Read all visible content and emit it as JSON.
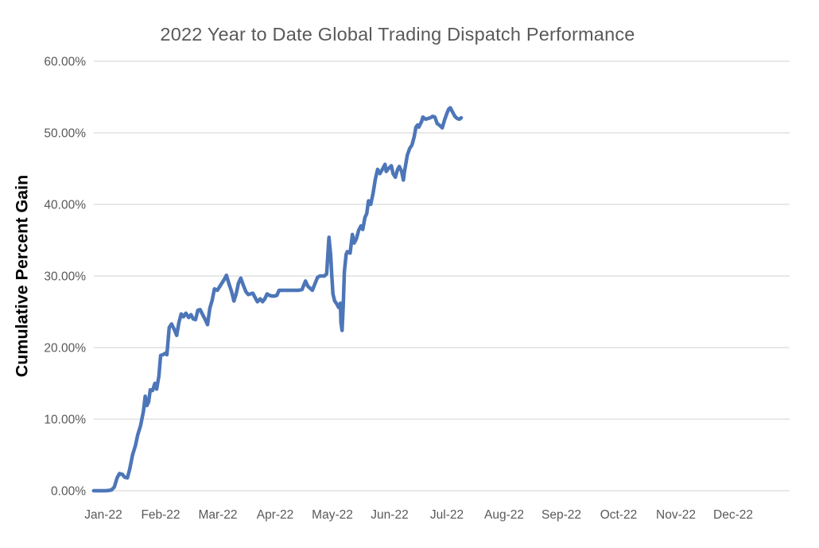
{
  "chart_data": {
    "type": "line",
    "title": "2022 Year to Date Global Trading Dispatch Performance",
    "ylabel": "Cumulative Percent Gain",
    "xlabel": "",
    "legend": "none",
    "grid": "horizontal",
    "ylim": [
      0,
      60
    ],
    "xlim_months": [
      -0.17,
      11.99
    ],
    "colors": {
      "line": "#4d76b8",
      "gridline": "#d9d9d9",
      "tick_label": "#595959",
      "title": "#595959",
      "y_axis_title": "#000000",
      "background": "#ffffff"
    },
    "y_ticks": [
      {
        "value": 0,
        "label": "0.00%"
      },
      {
        "value": 10,
        "label": "10.00%"
      },
      {
        "value": 20,
        "label": "20.00%"
      },
      {
        "value": 30,
        "label": "30.00%"
      },
      {
        "value": 40,
        "label": "40.00%"
      },
      {
        "value": 50,
        "label": "50.00%"
      },
      {
        "value": 60,
        "label": "60.00%"
      }
    ],
    "x_categories": [
      "Jan-22",
      "Feb-22",
      "Mar-22",
      "Apr-22",
      "May-22",
      "Jun-22",
      "Jul-22",
      "Aug-22",
      "Sep-22",
      "Oct-22",
      "Nov-22",
      "Dec-22"
    ],
    "series": [
      {
        "name": "Cumulative Percent Gain",
        "x_unit": "months-since-Jan-22-tick",
        "y_unit": "percent",
        "points": [
          [
            -0.17,
            0.0
          ],
          [
            0.05,
            0.0
          ],
          [
            0.14,
            0.1
          ],
          [
            0.19,
            0.5
          ],
          [
            0.24,
            1.8
          ],
          [
            0.28,
            2.4
          ],
          [
            0.33,
            2.3
          ],
          [
            0.37,
            1.9
          ],
          [
            0.42,
            1.8
          ],
          [
            0.46,
            3.0
          ],
          [
            0.51,
            5.0
          ],
          [
            0.56,
            6.3
          ],
          [
            0.6,
            7.8
          ],
          [
            0.65,
            9.1
          ],
          [
            0.7,
            11.1
          ],
          [
            0.73,
            13.2
          ],
          [
            0.76,
            11.9
          ],
          [
            0.79,
            12.4
          ],
          [
            0.82,
            14.1
          ],
          [
            0.86,
            14.0
          ],
          [
            0.9,
            15.0
          ],
          [
            0.93,
            14.2
          ],
          [
            0.97,
            16.0
          ],
          [
            1.0,
            18.9
          ],
          [
            1.04,
            19.0
          ],
          [
            1.08,
            19.2
          ],
          [
            1.11,
            19.0
          ],
          [
            1.15,
            22.8
          ],
          [
            1.19,
            23.3
          ],
          [
            1.24,
            22.5
          ],
          [
            1.28,
            21.7
          ],
          [
            1.32,
            23.5
          ],
          [
            1.36,
            24.7
          ],
          [
            1.4,
            24.3
          ],
          [
            1.44,
            24.8
          ],
          [
            1.49,
            24.2
          ],
          [
            1.53,
            24.6
          ],
          [
            1.57,
            24.0
          ],
          [
            1.61,
            23.9
          ],
          [
            1.65,
            25.2
          ],
          [
            1.69,
            25.3
          ],
          [
            1.74,
            24.5
          ],
          [
            1.78,
            23.9
          ],
          [
            1.82,
            23.2
          ],
          [
            1.86,
            25.5
          ],
          [
            1.9,
            26.6
          ],
          [
            1.94,
            28.2
          ],
          [
            1.99,
            28.0
          ],
          [
            2.03,
            28.5
          ],
          [
            2.07,
            29.0
          ],
          [
            2.11,
            29.5
          ],
          [
            2.15,
            30.1
          ],
          [
            2.19,
            29.0
          ],
          [
            2.24,
            27.8
          ],
          [
            2.28,
            26.5
          ],
          [
            2.32,
            27.5
          ],
          [
            2.36,
            29.0
          ],
          [
            2.4,
            29.7
          ],
          [
            2.44,
            28.8
          ],
          [
            2.49,
            27.8
          ],
          [
            2.53,
            27.4
          ],
          [
            2.57,
            27.5
          ],
          [
            2.61,
            27.6
          ],
          [
            2.65,
            27.0
          ],
          [
            2.69,
            26.4
          ],
          [
            2.74,
            26.8
          ],
          [
            2.78,
            26.4
          ],
          [
            2.82,
            26.8
          ],
          [
            2.86,
            27.5
          ],
          [
            2.9,
            27.3
          ],
          [
            2.94,
            27.2
          ],
          [
            2.99,
            27.2
          ],
          [
            3.03,
            27.3
          ],
          [
            3.07,
            28.0
          ],
          [
            3.15,
            28.0
          ],
          [
            3.24,
            28.0
          ],
          [
            3.32,
            28.0
          ],
          [
            3.4,
            28.0
          ],
          [
            3.47,
            28.1
          ],
          [
            3.53,
            29.3
          ],
          [
            3.57,
            28.6
          ],
          [
            3.61,
            28.3
          ],
          [
            3.65,
            28.0
          ],
          [
            3.69,
            28.8
          ],
          [
            3.74,
            29.8
          ],
          [
            3.78,
            30.0
          ],
          [
            3.82,
            30.0
          ],
          [
            3.86,
            30.0
          ],
          [
            3.9,
            30.3
          ],
          [
            3.94,
            35.4
          ],
          [
            3.97,
            33.0
          ],
          [
            3.99,
            30.0
          ],
          [
            4.01,
            27.5
          ],
          [
            4.04,
            26.5
          ],
          [
            4.07,
            26.2
          ],
          [
            4.11,
            25.6
          ],
          [
            4.14,
            26.2
          ],
          [
            4.15,
            23.5
          ],
          [
            4.17,
            22.4
          ],
          [
            4.19,
            26.0
          ],
          [
            4.21,
            30.6
          ],
          [
            4.24,
            33.0
          ],
          [
            4.26,
            33.4
          ],
          [
            4.31,
            33.2
          ],
          [
            4.35,
            35.8
          ],
          [
            4.38,
            34.6
          ],
          [
            4.42,
            35.2
          ],
          [
            4.46,
            36.4
          ],
          [
            4.5,
            37.0
          ],
          [
            4.53,
            36.5
          ],
          [
            4.57,
            38.2
          ],
          [
            4.6,
            38.7
          ],
          [
            4.63,
            40.5
          ],
          [
            4.67,
            40.0
          ],
          [
            4.71,
            41.5
          ],
          [
            4.75,
            43.5
          ],
          [
            4.79,
            44.9
          ],
          [
            4.83,
            44.3
          ],
          [
            4.88,
            45.0
          ],
          [
            4.92,
            45.6
          ],
          [
            4.94,
            44.6
          ],
          [
            4.99,
            45.1
          ],
          [
            5.03,
            45.4
          ],
          [
            5.06,
            44.3
          ],
          [
            5.1,
            43.8
          ],
          [
            5.14,
            44.9
          ],
          [
            5.17,
            45.3
          ],
          [
            5.21,
            44.6
          ],
          [
            5.24,
            43.4
          ],
          [
            5.26,
            44.6
          ],
          [
            5.31,
            46.9
          ],
          [
            5.35,
            47.8
          ],
          [
            5.39,
            48.3
          ],
          [
            5.43,
            49.5
          ],
          [
            5.46,
            50.8
          ],
          [
            5.49,
            51.1
          ],
          [
            5.51,
            50.8
          ],
          [
            5.56,
            51.6
          ],
          [
            5.58,
            52.2
          ],
          [
            5.63,
            51.9
          ],
          [
            5.67,
            52.0
          ],
          [
            5.71,
            52.1
          ],
          [
            5.75,
            52.3
          ],
          [
            5.79,
            52.2
          ],
          [
            5.83,
            51.3
          ],
          [
            5.88,
            51.0
          ],
          [
            5.92,
            50.7
          ],
          [
            5.96,
            51.8
          ],
          [
            6.0,
            52.7
          ],
          [
            6.03,
            53.3
          ],
          [
            6.06,
            53.5
          ],
          [
            6.1,
            52.9
          ],
          [
            6.14,
            52.3
          ],
          [
            6.18,
            52.0
          ],
          [
            6.22,
            51.9
          ],
          [
            6.25,
            52.1
          ]
        ]
      }
    ]
  }
}
